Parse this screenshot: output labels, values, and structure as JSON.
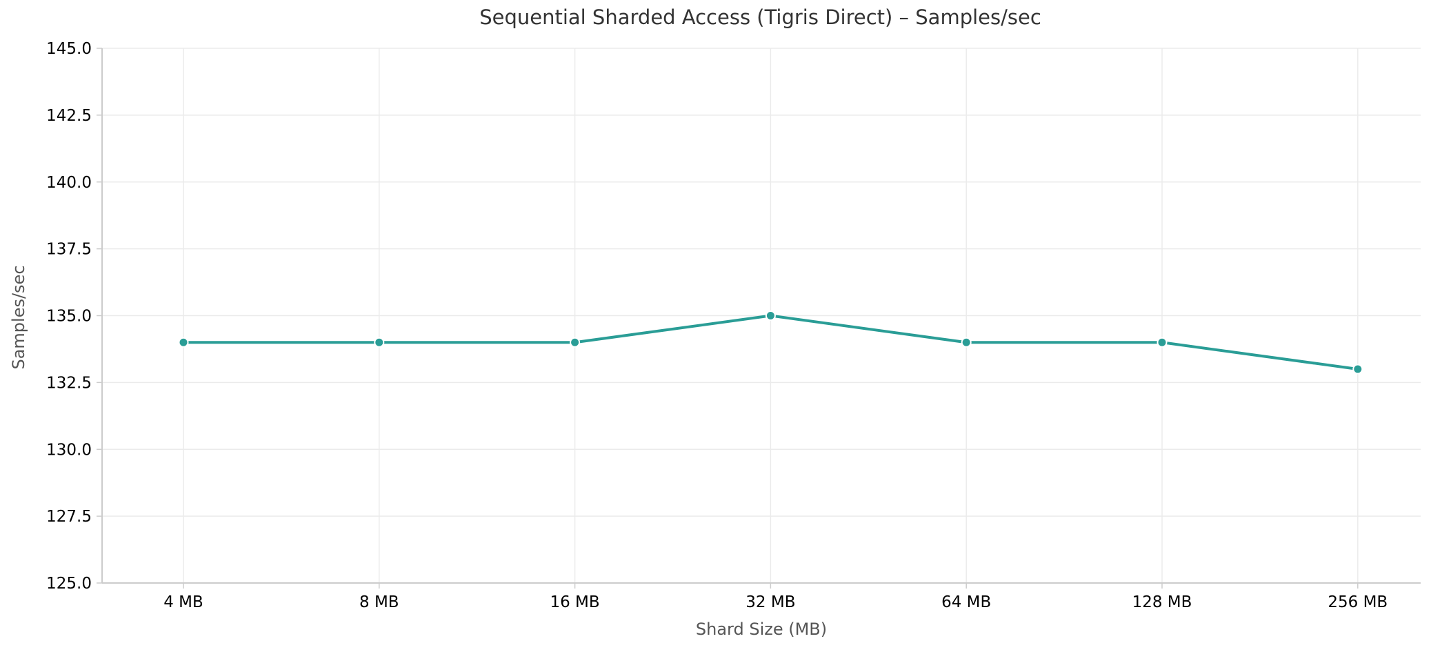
{
  "chart_data": {
    "type": "line",
    "title": "Sequential Sharded Access (Tigris Direct) – Samples/sec",
    "xlabel": "Shard Size (MB)",
    "ylabel": "Samples/sec",
    "categories": [
      "4 MB",
      "8 MB",
      "16 MB",
      "32 MB",
      "64 MB",
      "128 MB",
      "256 MB"
    ],
    "series": [
      {
        "name": "Samples/sec",
        "color": "#2a9d96",
        "values": [
          134,
          134,
          134,
          135,
          134,
          134,
          133
        ]
      }
    ],
    "ylim": [
      125.0,
      145.0
    ],
    "yticks": [
      "125.0",
      "127.5",
      "130.0",
      "132.5",
      "135.0",
      "137.5",
      "140.0",
      "142.5",
      "145.0"
    ],
    "grid": true,
    "legend": null
  }
}
